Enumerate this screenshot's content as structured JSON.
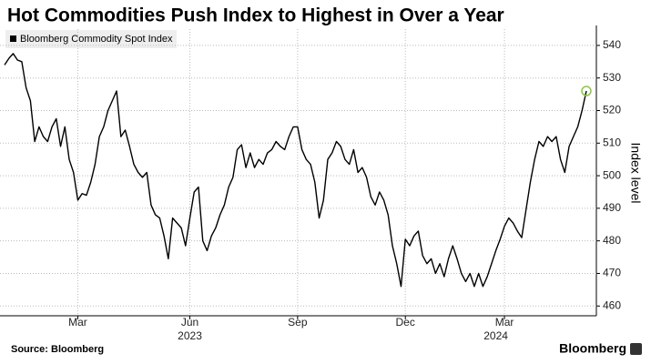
{
  "chart_data": {
    "type": "line",
    "title": "Hot Commodities Push Index to Highest in Over a Year",
    "y_axis_label": "Index level",
    "source": "Source: Bloomberg",
    "brand": "Bloomberg",
    "categories": [
      null,
      null,
      null,
      null,
      null,
      null,
      null,
      null,
      null,
      null,
      null,
      null,
      null,
      null,
      null,
      null,
      null,
      "Mar",
      null,
      null,
      null,
      null,
      null,
      null,
      null,
      null,
      null,
      null,
      null,
      null,
      null,
      null,
      null,
      null,
      null,
      null,
      null,
      null,
      null,
      null,
      null,
      null,
      null,
      "Jun",
      null,
      null,
      null,
      null,
      null,
      null,
      null,
      null,
      null,
      null,
      null,
      null,
      null,
      null,
      null,
      null,
      null,
      null,
      null,
      null,
      null,
      null,
      null,
      null,
      "Sep",
      null,
      null,
      null,
      null,
      null,
      null,
      null,
      null,
      null,
      null,
      null,
      null,
      null,
      null,
      null,
      null,
      null,
      null,
      null,
      null,
      null,
      null,
      null,
      null,
      "Dec",
      null,
      null,
      null,
      null,
      null,
      null,
      null,
      null,
      null,
      null,
      null,
      null,
      null,
      null,
      null,
      null,
      null,
      null,
      null,
      null,
      null,
      null,
      "Mar",
      null,
      null,
      null,
      null,
      null,
      null,
      null,
      null,
      null,
      null,
      null,
      null,
      null,
      null,
      null,
      null,
      null,
      null,
      null
    ],
    "category_years": [
      null,
      null,
      null,
      null,
      null,
      null,
      null,
      null,
      null,
      null,
      null,
      null,
      null,
      null,
      null,
      null,
      null,
      null,
      null,
      null,
      null,
      null,
      null,
      null,
      null,
      null,
      null,
      null,
      null,
      null,
      null,
      null,
      null,
      null,
      null,
      null,
      null,
      null,
      null,
      null,
      null,
      null,
      null,
      "2023",
      null,
      null,
      null,
      null,
      null,
      null,
      null,
      null,
      null,
      null,
      null,
      null,
      null,
      null,
      null,
      null,
      null,
      null,
      null,
      null,
      null,
      null,
      null,
      null,
      null,
      null,
      null,
      null,
      null,
      null,
      null,
      null,
      null,
      null,
      null,
      null,
      null,
      null,
      null,
      null,
      null,
      null,
      null,
      null,
      null,
      null,
      null,
      null,
      null,
      null,
      null,
      null,
      null,
      null,
      null,
      null,
      null,
      null,
      null,
      null,
      null,
      null,
      null,
      null,
      null,
      null,
      null,
      null,
      null,
      null,
      "2024",
      null,
      null,
      null,
      null,
      null,
      null,
      null,
      null,
      null,
      null,
      null,
      null,
      null,
      null,
      null,
      null,
      null,
      null,
      null
    ],
    "series": [
      {
        "name": "Bloomberg Commodity Spot Index",
        "color": "#000000",
        "values": [
          534,
          536,
          537.5,
          535.5,
          535,
          527,
          523,
          510.5,
          515,
          512,
          510.5,
          515,
          517.5,
          509,
          515,
          505,
          501,
          492.5,
          494.5,
          494,
          498,
          503.5,
          512,
          515,
          520,
          523,
          526,
          512,
          514,
          509,
          503.5,
          501,
          499.5,
          501,
          491,
          488,
          487,
          481.5,
          474.5,
          487,
          485.5,
          484,
          478.5,
          487,
          495,
          496.5,
          480,
          477,
          481.5,
          484,
          488,
          491,
          496.5,
          499.5,
          508,
          509.5,
          502.5,
          507,
          502.5,
          505,
          503.5,
          507,
          508,
          510.5,
          509,
          508,
          512,
          515,
          515,
          508,
          505,
          503.5,
          498,
          487,
          492.5,
          505,
          507,
          510.5,
          509,
          505,
          503.5,
          508,
          501,
          502.5,
          499.5,
          493.5,
          491,
          495,
          492.5,
          488,
          478.5,
          473,
          466,
          480.5,
          478.5,
          481.5,
          483,
          475.5,
          473,
          474.5,
          470,
          473,
          469,
          474.5,
          478.5,
          474.5,
          470,
          467.5,
          470,
          466,
          470,
          466,
          469,
          473,
          477,
          480.5,
          484.5,
          487,
          485.5,
          483,
          481,
          489.5,
          498,
          505,
          510.5,
          509,
          512,
          510.5,
          512,
          505,
          501,
          509,
          512,
          515,
          520,
          526
        ]
      }
    ],
    "highlight_color": "#8cc63f",
    "ylim": [
      457,
      545
    ],
    "yticks": [
      460,
      470,
      480,
      490,
      500,
      510,
      520,
      530,
      540
    ],
    "grid": true
  }
}
